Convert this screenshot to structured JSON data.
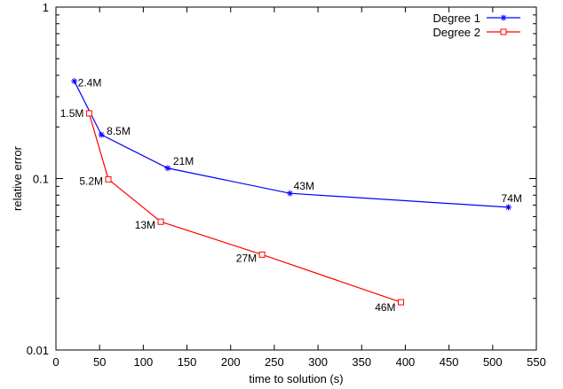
{
  "chart_data": {
    "type": "line",
    "xlabel": "time to solution (s)",
    "ylabel": "relative error",
    "xlim": [
      0,
      550
    ],
    "ylim": [
      0.01,
      1
    ],
    "yscale": "log",
    "xticks": [
      0,
      50,
      100,
      150,
      200,
      250,
      300,
      350,
      400,
      450,
      500,
      550
    ],
    "yticks": [
      0.01,
      0.1,
      1
    ],
    "ytick_labels": [
      "0.01",
      "0.1",
      "1"
    ],
    "grid": false,
    "legend_position": "top-right",
    "series": [
      {
        "name": "Degree 1",
        "color": "#0000ff",
        "marker": "star",
        "x": [
          21,
          52,
          128,
          268,
          518
        ],
        "y": [
          0.37,
          0.18,
          0.115,
          0.082,
          0.068
        ],
        "labels": [
          "2.4M",
          "8.5M",
          "21M",
          "43M",
          "74M"
        ]
      },
      {
        "name": "Degree 2",
        "color": "#ff0000",
        "marker": "square",
        "x": [
          38,
          60,
          120,
          236,
          395
        ],
        "y": [
          0.24,
          0.099,
          0.056,
          0.036,
          0.019
        ],
        "labels": [
          "1.5M",
          "5.2M",
          "13M",
          "27M",
          "46M"
        ]
      }
    ]
  }
}
